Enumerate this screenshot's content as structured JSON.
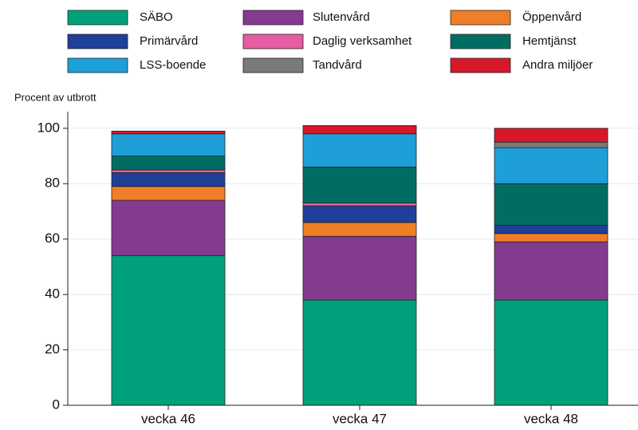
{
  "chart_data": {
    "type": "stacked-bar",
    "y_axis_label": "Procent av utbrott",
    "categories": [
      "vecka 46",
      "vecka 47",
      "vecka 48"
    ],
    "series": [
      {
        "name": "SÄBO",
        "color": "#00a07a",
        "values": [
          54,
          38,
          38
        ]
      },
      {
        "name": "Slutenvård",
        "color": "#833a8f",
        "values": [
          20,
          23,
          21
        ]
      },
      {
        "name": "Öppenvård",
        "color": "#f07e26",
        "values": [
          5,
          5,
          3
        ]
      },
      {
        "name": "Primärvård",
        "color": "#1f3f99",
        "values": [
          5,
          6,
          3
        ]
      },
      {
        "name": "Daglig verksamhet",
        "color": "#e85ca4",
        "values": [
          1,
          1,
          0
        ]
      },
      {
        "name": "Hemtjänst",
        "color": "#006d62",
        "values": [
          5,
          13,
          15
        ]
      },
      {
        "name": "LSS-boende",
        "color": "#1f9fd8",
        "values": [
          8,
          12,
          13
        ]
      },
      {
        "name": "Tandvård",
        "color": "#7a7a7a",
        "values": [
          0,
          0,
          2
        ]
      },
      {
        "name": "Andra miljöer",
        "color": "#d7182a",
        "values": [
          1,
          3,
          5
        ]
      }
    ],
    "ylim": [
      0,
      106
    ],
    "yticks": [
      0,
      20,
      40,
      60,
      80,
      100
    ],
    "grid": true
  }
}
